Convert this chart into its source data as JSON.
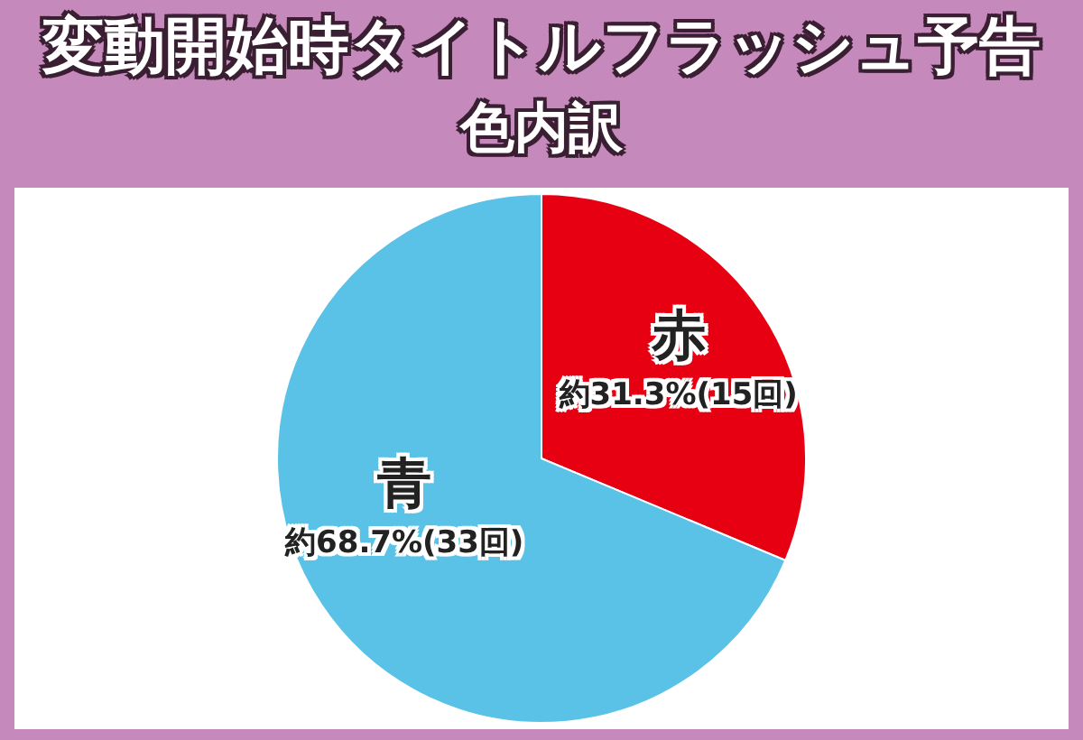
{
  "chart_data": {
    "type": "pie",
    "title": "変動開始時タイトルフラッシュ予告",
    "subtitle": "色内訳",
    "categories": [
      "赤",
      "青"
    ],
    "values": [
      31.3,
      68.7
    ],
    "colors": [
      "#e60012",
      "#5bc2e7"
    ],
    "value_labels": [
      "約31.3%(15回)",
      "約68.7%(33回)"
    ],
    "legend": false
  }
}
